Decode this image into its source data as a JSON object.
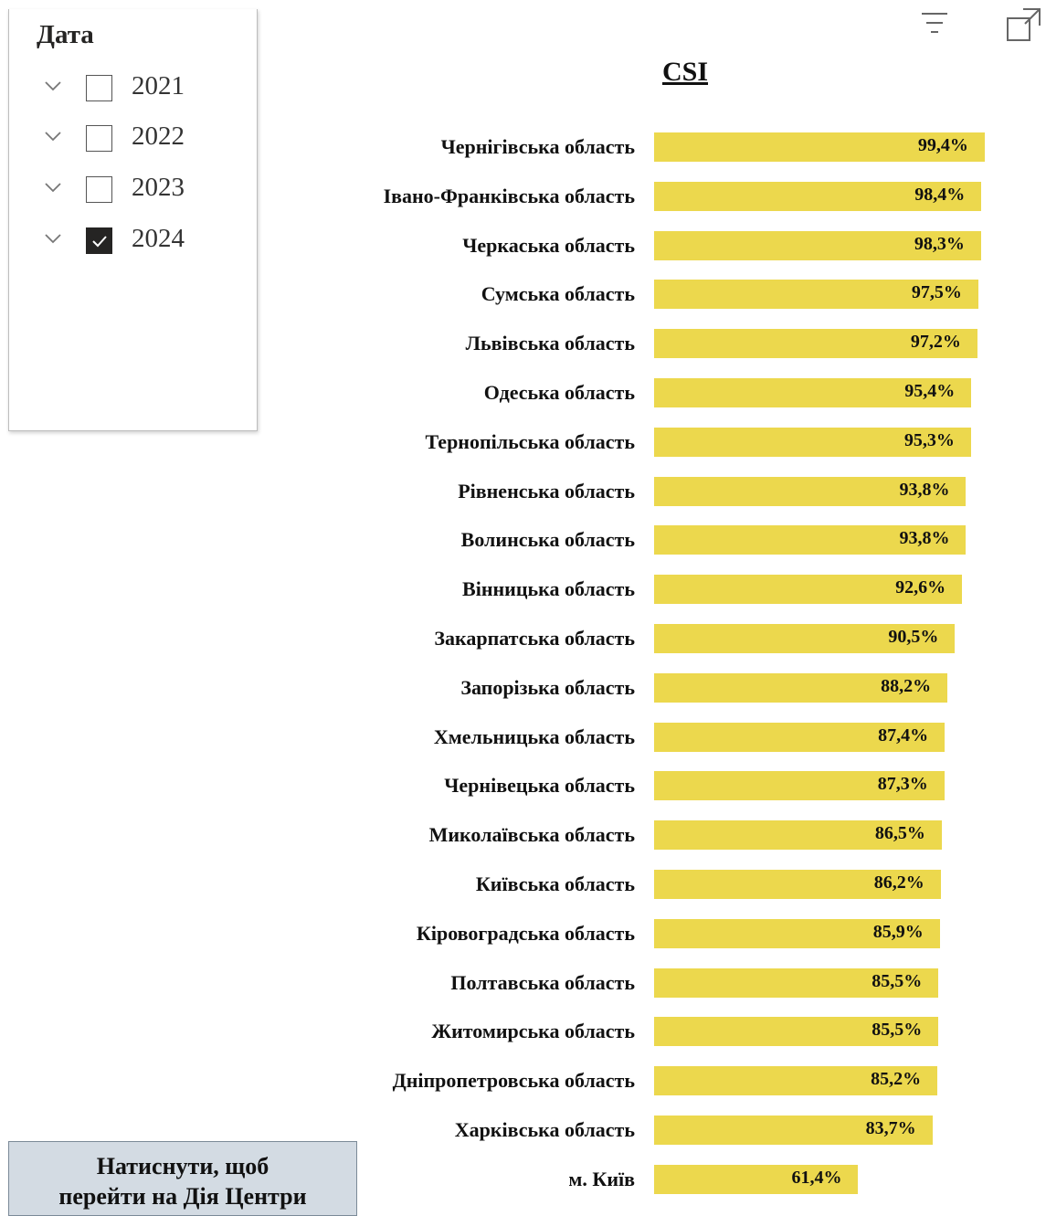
{
  "slicer": {
    "title": "Дата",
    "items": [
      {
        "label": "2021",
        "checked": false
      },
      {
        "label": "2022",
        "checked": false
      },
      {
        "label": "2023",
        "checked": false
      },
      {
        "label": "2024",
        "checked": true
      }
    ]
  },
  "toolbar": {
    "icons": [
      "filter-icon",
      "focus-mode-icon"
    ]
  },
  "colors": {
    "bar": "#ecd84d",
    "button_bg": "#d3dbe3"
  },
  "chart_data": {
    "type": "bar",
    "orientation": "horizontal",
    "title": "CSI",
    "categories": [
      "Чернігівська область",
      "Івано-Франківська область",
      "Черкаська область",
      "Сумська область",
      "Львівська область",
      "Одеська область",
      "Тернопільська область",
      "Рівненська область",
      "Волинська область",
      "Вінницька область",
      "Закарпатська область",
      "Запорізька область",
      "Хмельницька область",
      "Чернівецька область",
      "Миколаївська область",
      "Київська область",
      "Кіровоградська область",
      "Полтавська область",
      "Житомирська область",
      "Дніпропетровська область",
      "Харківська область",
      "м. Київ"
    ],
    "values": [
      99.4,
      98.4,
      98.3,
      97.5,
      97.2,
      95.4,
      95.3,
      93.8,
      93.8,
      92.6,
      90.5,
      88.2,
      87.4,
      87.3,
      86.5,
      86.2,
      85.9,
      85.5,
      85.5,
      85.2,
      83.7,
      61.4
    ],
    "value_labels": [
      "99,4%",
      "98,4%",
      "98,3%",
      "97,5%",
      "97,2%",
      "95,4%",
      "95,3%",
      "93,8%",
      "93,8%",
      "92,6%",
      "90,5%",
      "88,2%",
      "87,4%",
      "87,3%",
      "86,5%",
      "86,2%",
      "85,9%",
      "85,5%",
      "85,5%",
      "85,2%",
      "83,7%",
      "61,4%"
    ],
    "xlim": [
      0,
      100
    ],
    "grid": false,
    "legend": "none"
  },
  "nav_button": {
    "line1": "Натиснути, щоб",
    "line2": "перейти на Дія Центри"
  }
}
